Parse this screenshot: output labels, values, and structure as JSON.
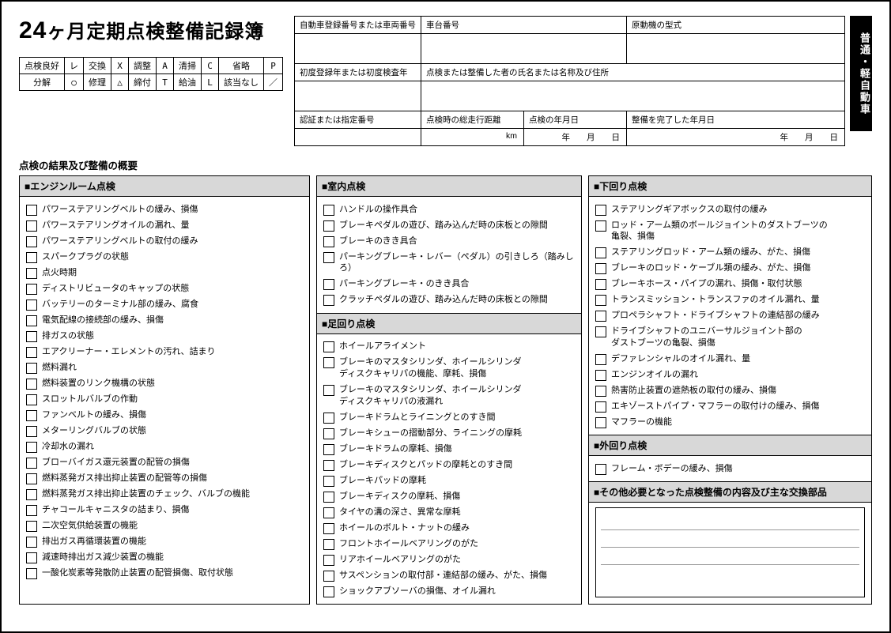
{
  "title_prefix": "24",
  "title_rest": "ヶ月定期点検整備記録簿",
  "vertical_tab": "普通・軽自動車",
  "legend": [
    [
      {
        "label": "点検良好",
        "sym": "レ"
      },
      {
        "label": "交換",
        "sym": "X"
      },
      {
        "label": "調整",
        "sym": "A"
      },
      {
        "label": "清掃",
        "sym": "C"
      },
      {
        "label": "省略",
        "sym": "P"
      }
    ],
    [
      {
        "label": "分解",
        "sym": "○"
      },
      {
        "label": "修理",
        "sym": "△"
      },
      {
        "label": "締付",
        "sym": "T"
      },
      {
        "label": "給油",
        "sym": "L"
      },
      {
        "label": "該当なし",
        "sym": "／"
      }
    ]
  ],
  "header": {
    "r1": {
      "c1": "自動車登録番号または車両番号",
      "c2": "車台番号",
      "c3": "原動機の型式"
    },
    "r2": {
      "c1": "初度登録年または初度検査年",
      "c2": "点検または整備した者の氏名または名称及び住所"
    },
    "r3": {
      "c1": "認証または指定番号",
      "c2": "点検時の総走行距離",
      "c2_unit": "km",
      "c3": "点検の年月日",
      "c3_date": "年　　月　　日",
      "c4": "整備を完了した年月日",
      "c4_date": "年　　月　　日"
    }
  },
  "results_heading": "点検の結果及び整備の概要",
  "col1": {
    "s1": {
      "title": "■エンジンルーム点検",
      "items": [
        "パワーステアリングベルトの緩み、損傷",
        "パワーステアリングオイルの漏れ、量",
        "パワーステアリングベルトの取付の緩み",
        "スパークプラグの状態",
        "点火時期",
        "ディストリビュータのキャップの状態",
        "バッテリーのターミナル部の緩み、腐食",
        "電気配線の接続部の緩み、損傷",
        "排ガスの状態",
        "エアクリーナー・エレメントの汚れ、詰まり",
        "燃料漏れ",
        "燃料装置のリンク機構の状態",
        "スロットルバルブの作動",
        "ファンベルトの緩み、損傷",
        "メターリングバルブの状態",
        "冷却水の漏れ",
        "ブローバイガス還元装置の配管の損傷",
        "燃料蒸発ガス排出抑止装置の配管等の損傷",
        "燃料蒸発ガス排出抑止装置のチェック、バルブの機能",
        "チャコールキャニスタの詰まり、損傷",
        "二次空気供給装置の機能",
        "排出ガス再循環装置の機能",
        "減速時排出ガス減少装置の機能",
        "一酸化炭素等発散防止装置の配管損傷、取付状態"
      ]
    }
  },
  "col2": {
    "s1": {
      "title": "■室内点検",
      "items": [
        "ハンドルの操作具合",
        "ブレーキペダルの遊び、踏み込んだ時の床板との隙間",
        "ブレーキのきき具合",
        "パーキングブレーキ・レバー（ペダル）の引きしろ（踏みしろ）",
        "パーキングブレーキ・のきき具合",
        "クラッチペダルの遊び、踏み込んだ時の床板との隙間"
      ]
    },
    "s2": {
      "title": "■足回り点検",
      "items": [
        "ホイールアライメント",
        "ブレーキのマスタシリンダ、ホイールシリンダ\nディスクキャリパの機能、摩耗、損傷",
        "ブレーキのマスタシリンダ、ホイールシリンダ\nディスクキャリパの液漏れ",
        "ブレーキドラムとライニングとのすき間",
        "ブレーキシューの摺動部分、ライニングの摩耗",
        "ブレーキドラムの摩耗、損傷",
        "ブレーキディスクとパッドの摩耗とのすき間",
        "ブレーキパッドの摩耗",
        "ブレーキディスクの摩耗、損傷",
        "タイヤの溝の深さ、異常な摩耗",
        "ホイールのボルト・ナットの緩み",
        "フロントホイールベアリングのがた",
        "リアホイールベアリングのがた",
        "サスペンションの取付部・連結部の緩み、がた、損傷",
        "ショックアブソーバの損傷、オイル漏れ"
      ]
    }
  },
  "col3": {
    "s1": {
      "title": "■下回り点検",
      "items": [
        "ステアリングギアボックスの取付の緩み",
        "ロッド・アーム類のボールジョイントのダストブーツの\n亀裂、損傷",
        "ステアリングロッド・アーム類の緩み、がた、損傷",
        "ブレーキのロッド・ケーブル類の緩み、がた、損傷",
        "ブレーキホース・パイプの漏れ、損傷・取付状態",
        "トランスミッション・トランスファのオイル漏れ、量",
        "プロペラシャフト・ドライブシャフトの連結部の緩み",
        "ドライブシャフトのユニバーサルジョイント部の\nダストブーツの亀裂、損傷",
        "デファレンシャルのオイル漏れ、量",
        "エンジンオイルの漏れ",
        "熱害防止装置の遮熱板の取付の緩み、損傷",
        "エキゾーストパイプ・マフラーの取付けの緩み、損傷",
        "マフラーの機能"
      ]
    },
    "s2": {
      "title": "■外回り点検",
      "items": [
        "フレーム・ボデーの緩み、損傷"
      ]
    },
    "s3": {
      "title": "■その他必要となった点検整備の内容及び主な交換部品"
    }
  }
}
